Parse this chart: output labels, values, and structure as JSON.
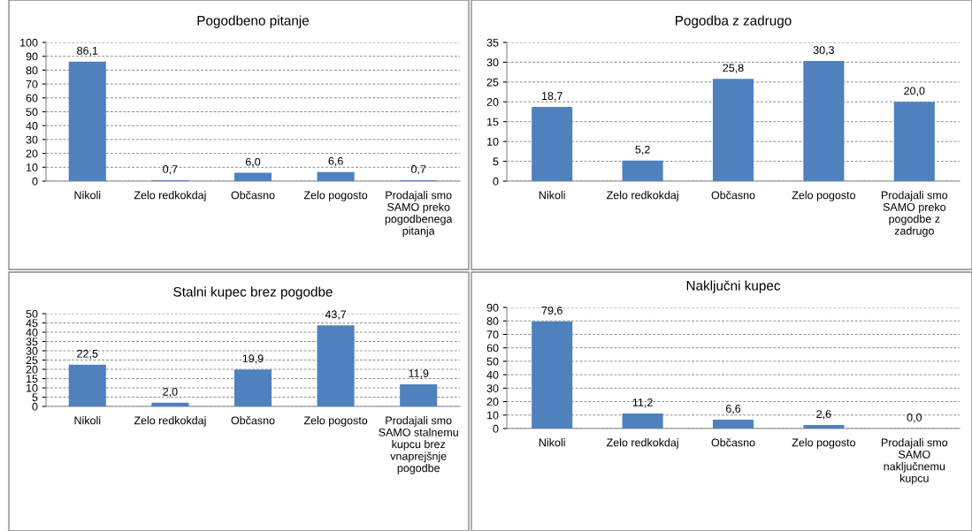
{
  "chart_data": [
    {
      "type": "bar",
      "title": "Pogodbeno pitanje",
      "categories": [
        "Nikoli",
        "Zelo redkokdaj",
        "Občasno",
        "Zelo pogosto",
        "Prodajali smo\nSAMO preko\npogodbenega\npitanja"
      ],
      "values": [
        86.1,
        0.7,
        6.0,
        6.6,
        0.7
      ],
      "value_labels": [
        "86,1",
        "0,7",
        "6,0",
        "6,6",
        "0,7"
      ],
      "color": "#4f81bd",
      "ylim": [
        0,
        100
      ],
      "yticks": [
        0,
        10,
        20,
        30,
        40,
        50,
        60,
        70,
        80,
        90,
        100
      ],
      "grid": "y"
    },
    {
      "type": "bar",
      "title": "Pogodba z zadrugo",
      "categories": [
        "Nikoli",
        "Zelo redkokdaj",
        "Občasno",
        "Zelo pogosto",
        "Prodajali smo\nSAMO preko\npogodbe z\nzadrugo"
      ],
      "values": [
        18.7,
        5.2,
        25.8,
        30.3,
        20.0
      ],
      "value_labels": [
        "18,7",
        "5,2",
        "25,8",
        "30,3",
        "20,0"
      ],
      "color": "#4f81bd",
      "ylim": [
        0,
        35
      ],
      "yticks": [
        0,
        5,
        10,
        15,
        20,
        25,
        30,
        35
      ],
      "grid": "y"
    },
    {
      "type": "bar",
      "title": "Stalni kupec brez pogodbe",
      "categories": [
        "Nikoli",
        "Zelo redkokdaj",
        "Občasno",
        "Zelo pogosto",
        "Prodajali smo\nSAMO stalnemu\nkupcu brez\nvnaprejšnje\npogodbe"
      ],
      "values": [
        22.5,
        2.0,
        19.9,
        43.7,
        11.9
      ],
      "value_labels": [
        "22,5",
        "2,0",
        "19,9",
        "43,7",
        "11,9"
      ],
      "color": "#4f81bd",
      "ylim": [
        0,
        50
      ],
      "yticks": [
        0,
        5,
        10,
        15,
        20,
        25,
        30,
        35,
        40,
        45,
        50
      ],
      "grid": "y"
    },
    {
      "type": "bar",
      "title": "Naključni kupec",
      "categories": [
        "Nikoli",
        "Zelo redkokdaj",
        "Občasno",
        "Zelo pogosto",
        "Prodajali smo\nSAMO\nnaključnemu\nkupcu"
      ],
      "values": [
        79.6,
        11.2,
        6.6,
        2.6,
        0.0
      ],
      "value_labels": [
        "79,6",
        "11,2",
        "6,6",
        "2,6",
        "0,0"
      ],
      "color": "#4f81bd",
      "ylim": [
        0,
        90
      ],
      "yticks": [
        0,
        10,
        20,
        30,
        40,
        50,
        60,
        70,
        80,
        90
      ],
      "grid": "y"
    }
  ]
}
